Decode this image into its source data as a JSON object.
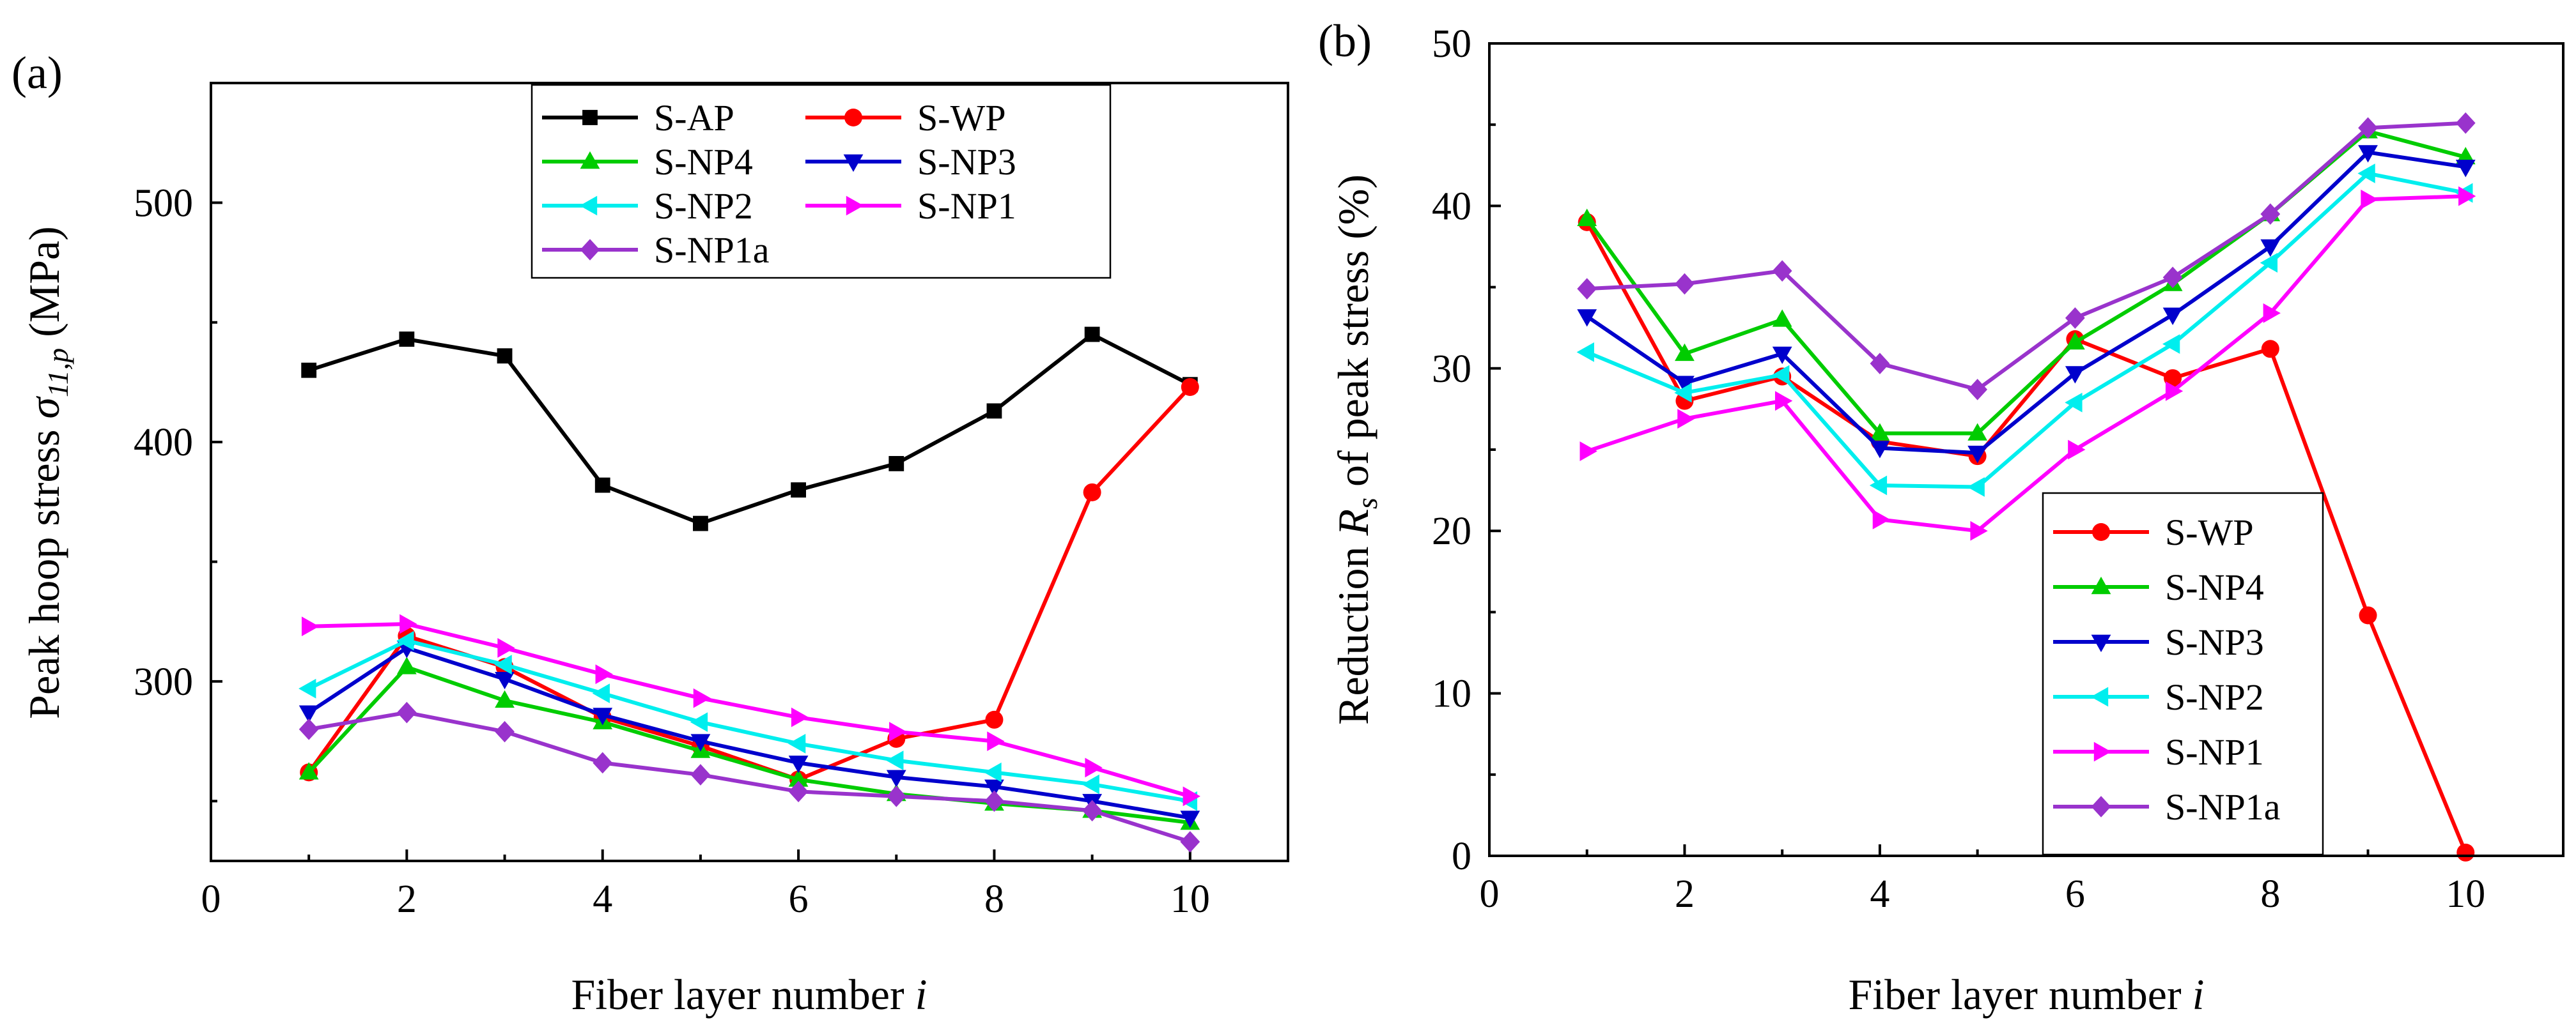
{
  "chart_data": [
    {
      "type": "line",
      "panel_label": "(a)",
      "xlabel": "Fiber layer number",
      "xlabel_var": "i",
      "ylabel": "Peak hoop stress",
      "ylabel_symbol": "σ",
      "ylabel_subscript": "11,p",
      "ylabel_unit": "(MPa)",
      "xlim": [
        0,
        11
      ],
      "ylim": [
        225,
        550
      ],
      "xticks": [
        0,
        2,
        4,
        6,
        8,
        10
      ],
      "yticks": [
        300,
        400,
        500
      ],
      "x": [
        1,
        2,
        3,
        4,
        5,
        6,
        7,
        8,
        9,
        10
      ],
      "legend_position": "top-center",
      "series": [
        {
          "name": "S-AP",
          "color": "#000000",
          "marker": "square",
          "values": [
            430,
            443,
            436,
            382,
            366,
            380,
            391,
            413,
            445,
            424
          ]
        },
        {
          "name": "S-WP",
          "color": "#ff0000",
          "marker": "circle",
          "values": [
            262,
            319,
            306,
            285,
            273,
            259,
            276,
            284,
            379,
            423
          ]
        },
        {
          "name": "S-NP4",
          "color": "#00cc00",
          "marker": "triangle-up",
          "values": [
            262,
            306,
            292,
            283,
            271,
            259,
            253,
            249,
            246,
            241
          ]
        },
        {
          "name": "S-NP3",
          "color": "#0000cc",
          "marker": "triangle-down",
          "values": [
            287,
            314,
            301,
            286,
            275,
            266,
            260,
            256,
            250,
            243
          ]
        },
        {
          "name": "S-NP2",
          "color": "#00eeee",
          "marker": "triangle-left",
          "values": [
            297,
            317,
            307,
            295,
            283,
            274,
            267,
            262,
            257,
            250
          ]
        },
        {
          "name": "S-NP1",
          "color": "#ff00ff",
          "marker": "triangle-right",
          "values": [
            323,
            324,
            314,
            303,
            293,
            285,
            279,
            275,
            264,
            252
          ]
        },
        {
          "name": "S-NP1a",
          "color": "#9933cc",
          "marker": "diamond",
          "values": [
            280,
            287,
            279,
            266,
            261,
            254,
            252,
            250,
            246,
            233
          ]
        }
      ]
    },
    {
      "type": "line",
      "panel_label": "(b)",
      "xlabel": "Fiber layer number",
      "xlabel_var": "i",
      "ylabel": "Reduction",
      "ylabel_symbol": "R",
      "ylabel_subscript": "s",
      "ylabel_rest": "of peak stress (%)",
      "xlim": [
        0,
        11
      ],
      "ylim": [
        0,
        50
      ],
      "xticks": [
        0,
        2,
        4,
        6,
        8,
        10
      ],
      "yticks": [
        0,
        10,
        20,
        30,
        40,
        50
      ],
      "x": [
        1,
        2,
        3,
        4,
        5,
        6,
        7,
        8,
        9,
        10
      ],
      "legend_position": "bottom-right",
      "series": [
        {
          "name": "S-WP",
          "color": "#ff0000",
          "marker": "circle",
          "values": [
            39.0,
            28.0,
            29.5,
            25.5,
            24.6,
            31.8,
            29.4,
            31.2,
            14.8,
            0.2
          ]
        },
        {
          "name": "S-NP4",
          "color": "#00cc00",
          "marker": "triangle-up",
          "values": [
            39.2,
            30.9,
            33.0,
            26.0,
            26.0,
            31.6,
            35.2,
            39.5,
            44.6,
            43.0
          ]
        },
        {
          "name": "S-NP3",
          "color": "#0000cc",
          "marker": "triangle-down",
          "values": [
            33.2,
            29.1,
            30.9,
            25.1,
            24.8,
            29.7,
            33.3,
            37.5,
            43.3,
            42.4
          ]
        },
        {
          "name": "S-NP2",
          "color": "#00eeee",
          "marker": "triangle-left",
          "values": [
            31.0,
            28.5,
            29.6,
            22.8,
            22.7,
            27.9,
            31.5,
            36.5,
            42.0,
            40.8
          ]
        },
        {
          "name": "S-NP1",
          "color": "#ff00ff",
          "marker": "triangle-right",
          "values": [
            24.9,
            26.9,
            28.0,
            20.7,
            20.0,
            25.0,
            28.6,
            33.4,
            40.4,
            40.6
          ]
        },
        {
          "name": "S-NP1a",
          "color": "#9933cc",
          "marker": "diamond",
          "values": [
            34.9,
            35.2,
            36.0,
            30.3,
            28.7,
            33.1,
            35.6,
            39.5,
            44.8,
            45.1
          ]
        }
      ]
    }
  ]
}
